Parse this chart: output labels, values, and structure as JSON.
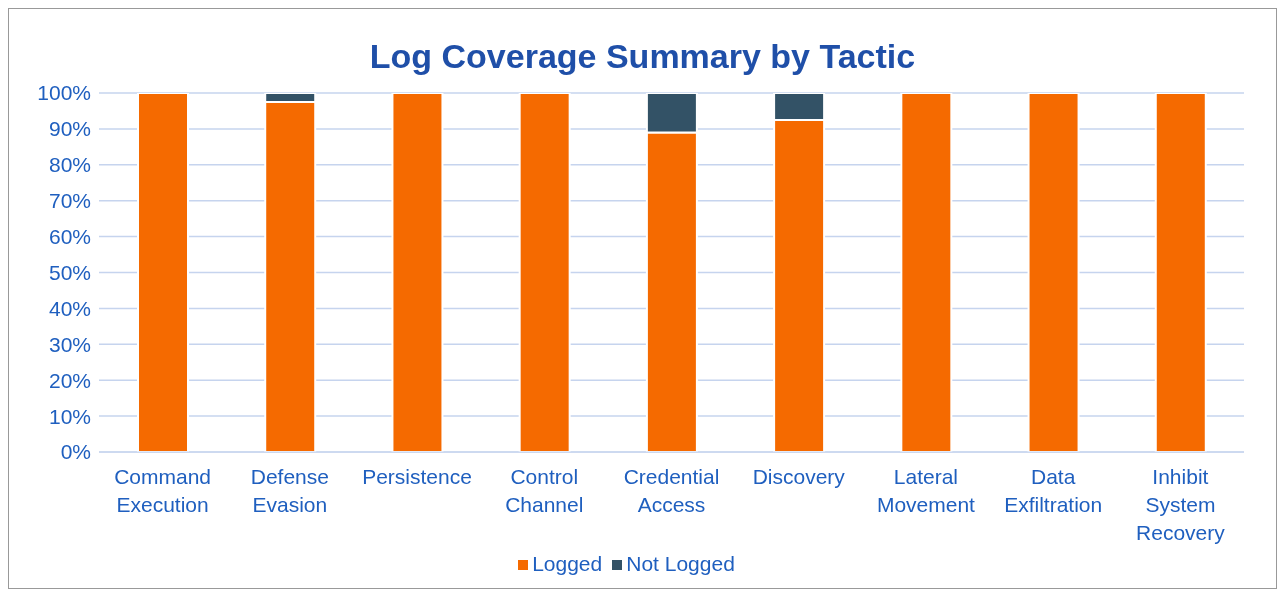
{
  "chart_data": {
    "type": "bar",
    "title": "Log Coverage Summary by Tactic",
    "stacked": true,
    "categories": [
      "Command Execution",
      "Defense Evasion",
      "Persistence",
      "Control Channel",
      "Credential Access",
      "Discovery",
      "Lateral Movement",
      "Data Exfiltration",
      "Inhibit System Recovery"
    ],
    "series": [
      {
        "name": "Logged",
        "color": "#f56a00",
        "values": [
          100,
          97.5,
          100,
          100,
          89,
          92.5,
          100,
          100,
          100
        ]
      },
      {
        "name": "Not Logged",
        "color": "#335266",
        "values": [
          0,
          2.5,
          0,
          0,
          11,
          7.5,
          0,
          0,
          0
        ]
      }
    ],
    "ylim": [
      0,
      100
    ],
    "yticks": [
      {
        "value": 0,
        "label": "0%"
      },
      {
        "value": 10,
        "label": "10%"
      },
      {
        "value": 20,
        "label": "20%"
      },
      {
        "value": 30,
        "label": "30%"
      },
      {
        "value": 40,
        "label": "40%"
      },
      {
        "value": 50,
        "label": "50%"
      },
      {
        "value": 60,
        "label": "60%"
      },
      {
        "value": 70,
        "label": "70%"
      },
      {
        "value": 80,
        "label": "80%"
      },
      {
        "value": 90,
        "label": "90%"
      },
      {
        "value": 100,
        "label": "100%"
      }
    ],
    "grid": "y",
    "legend": "bottom"
  }
}
